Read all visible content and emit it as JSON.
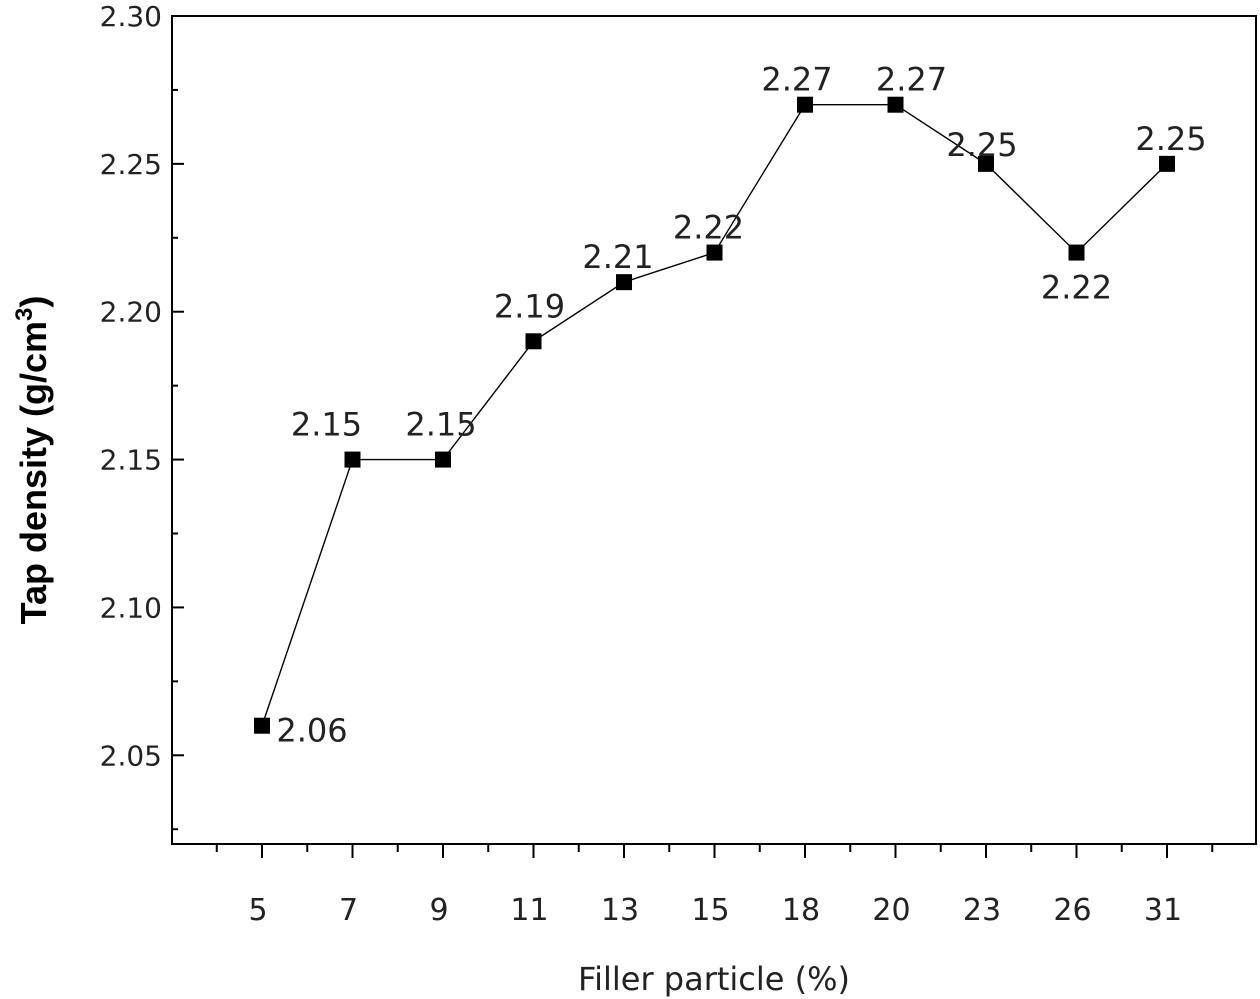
{
  "chart_data": {
    "type": "line",
    "categories": [
      "5",
      "7",
      "9",
      "11",
      "13",
      "15",
      "18",
      "20",
      "23",
      "26",
      "31"
    ],
    "series": [
      {
        "values": [
          2.06,
          2.15,
          2.15,
          2.19,
          2.21,
          2.22,
          2.27,
          2.27,
          2.25,
          2.22,
          2.25
        ]
      }
    ],
    "data_labels": [
      "2.06",
      "2.15",
      "2.15",
      "2.19",
      "2.21",
      "2.22",
      "2.27",
      "2.27",
      "2.25",
      "2.22",
      "2.25"
    ],
    "xlabel": "Filler particle (%)",
    "ylabel_main": "Tap density (g/cm",
    "ylabel_sup": "3",
    "ylabel_close": ")",
    "ylim": [
      2.02,
      2.3
    ],
    "yticks": [
      "2.05",
      "2.10",
      "2.15",
      "2.20",
      "2.25",
      "2.30"
    ],
    "marker": "filled-square",
    "grid": false,
    "legend": "none"
  }
}
